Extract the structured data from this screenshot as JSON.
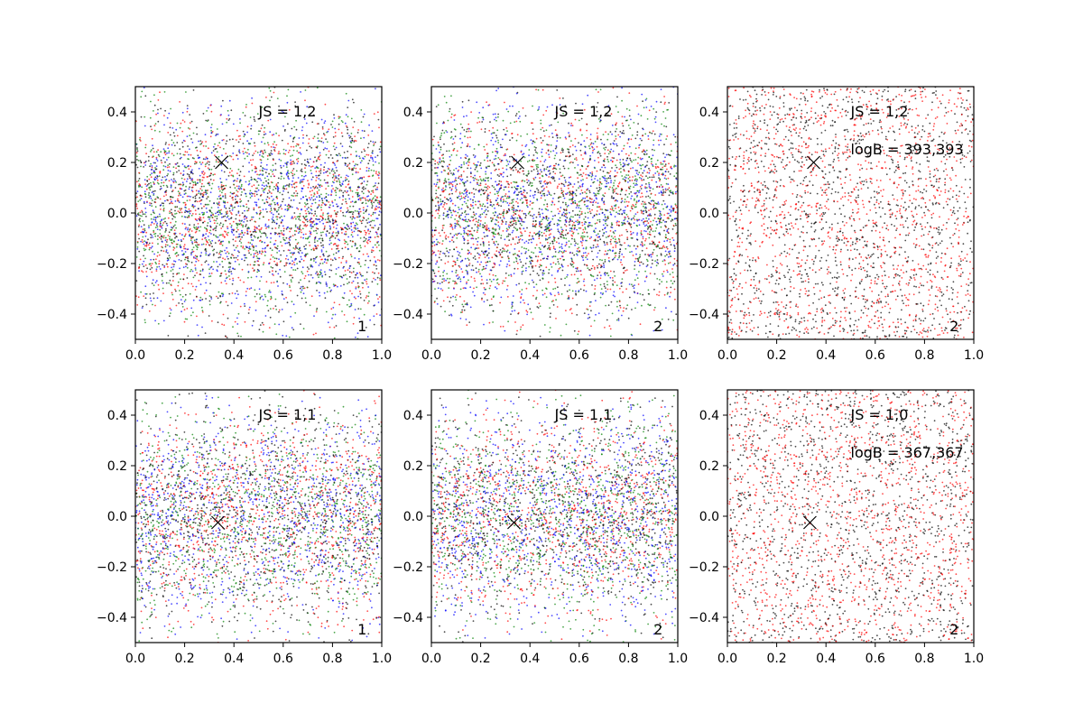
{
  "colors": {
    "red": "#ff0000",
    "green": "#008000",
    "blue": "#0000ff",
    "black": "#000000"
  },
  "chart_data": [
    {
      "type": "scatter",
      "xlim": [
        0.0,
        1.0
      ],
      "ylim": [
        -0.5,
        0.5
      ],
      "xticks": [
        "0.0",
        "0.2",
        "0.4",
        "0.6",
        "0.8",
        "1.0"
      ],
      "yticks": [
        "−0.4",
        "−0.2",
        "0.0",
        "0.2",
        "0.4"
      ],
      "grid": false,
      "point_colors": [
        "#ff0000",
        "#008000",
        "#0000ff",
        "#000000"
      ],
      "points_per_color": 950,
      "y_spread": "normal",
      "marker": {
        "x": 0.35,
        "y": 0.2,
        "symbol": "x"
      },
      "js_label": "JS = 1,2",
      "logb_label": "",
      "corner_label": "1"
    },
    {
      "type": "scatter",
      "xlim": [
        0.0,
        1.0
      ],
      "ylim": [
        -0.5,
        0.5
      ],
      "xticks": [
        "0.0",
        "0.2",
        "0.4",
        "0.6",
        "0.8",
        "1.0"
      ],
      "yticks": [
        "−0.4",
        "−0.2",
        "0.0",
        "0.2",
        "0.4"
      ],
      "grid": false,
      "point_colors": [
        "#ff0000",
        "#008000",
        "#0000ff",
        "#000000"
      ],
      "points_per_color": 950,
      "y_spread": "normal",
      "marker": {
        "x": 0.35,
        "y": 0.2,
        "symbol": "x"
      },
      "js_label": "JS = 1,2",
      "logb_label": "",
      "corner_label": "2"
    },
    {
      "type": "scatter",
      "xlim": [
        0.0,
        1.0
      ],
      "ylim": [
        -0.5,
        0.5
      ],
      "xticks": [
        "0.0",
        "0.2",
        "0.4",
        "0.6",
        "0.8",
        "1.0"
      ],
      "yticks": [
        "−0.4",
        "−0.2",
        "0.0",
        "0.2",
        "0.4"
      ],
      "grid": false,
      "point_colors": [
        "#ff0000",
        "#000000"
      ],
      "points_per_color": 1300,
      "y_spread": "uniform",
      "marker": {
        "x": 0.35,
        "y": 0.2,
        "symbol": "x"
      },
      "js_label": "JS = 1,2",
      "logb_label": "logB = 393,393",
      "corner_label": "2"
    },
    {
      "type": "scatter",
      "xlim": [
        0.0,
        1.0
      ],
      "ylim": [
        -0.5,
        0.5
      ],
      "xticks": [
        "0.0",
        "0.2",
        "0.4",
        "0.6",
        "0.8",
        "1.0"
      ],
      "yticks": [
        "−0.4",
        "−0.2",
        "0.0",
        "0.2",
        "0.4"
      ],
      "grid": false,
      "point_colors": [
        "#ff0000",
        "#008000",
        "#0000ff",
        "#000000"
      ],
      "points_per_color": 950,
      "y_spread": "normal",
      "marker": {
        "x": 0.335,
        "y": -0.025,
        "symbol": "x"
      },
      "js_label": "JS = 1,1",
      "logb_label": "",
      "corner_label": "1"
    },
    {
      "type": "scatter",
      "xlim": [
        0.0,
        1.0
      ],
      "ylim": [
        -0.5,
        0.5
      ],
      "xticks": [
        "0.0",
        "0.2",
        "0.4",
        "0.6",
        "0.8",
        "1.0"
      ],
      "yticks": [
        "−0.4",
        "−0.2",
        "0.0",
        "0.2",
        "0.4"
      ],
      "grid": false,
      "point_colors": [
        "#ff0000",
        "#008000",
        "#0000ff",
        "#000000"
      ],
      "points_per_color": 950,
      "y_spread": "normal",
      "marker": {
        "x": 0.335,
        "y": -0.025,
        "symbol": "x"
      },
      "js_label": "JS = 1,1",
      "logb_label": "",
      "corner_label": "2"
    },
    {
      "type": "scatter",
      "xlim": [
        0.0,
        1.0
      ],
      "ylim": [
        -0.5,
        0.5
      ],
      "xticks": [
        "0.0",
        "0.2",
        "0.4",
        "0.6",
        "0.8",
        "1.0"
      ],
      "yticks": [
        "−0.4",
        "−0.2",
        "0.0",
        "0.2",
        "0.4"
      ],
      "grid": false,
      "point_colors": [
        "#ff0000",
        "#000000"
      ],
      "points_per_color": 1300,
      "y_spread": "uniform",
      "marker": {
        "x": 0.335,
        "y": -0.025,
        "symbol": "x"
      },
      "js_label": "JS = 1,0",
      "logb_label": "logB = 367,367",
      "corner_label": "2"
    }
  ]
}
